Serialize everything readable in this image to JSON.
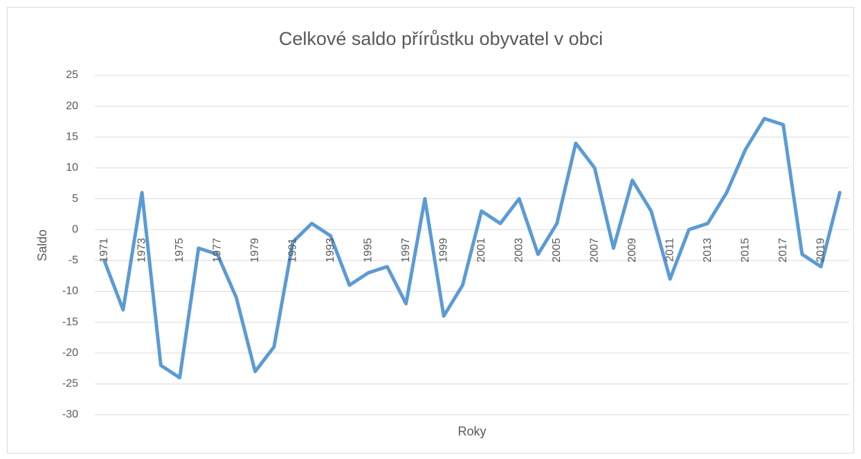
{
  "chart_data": {
    "type": "line",
    "title": "Celkové saldo přírůstku obyvatel v obci",
    "x_label": "Roky",
    "y_label": "Saldo",
    "categories": [
      "1971",
      null,
      "1973",
      null,
      "1975",
      null,
      "1977",
      null,
      "1979",
      null,
      "1991",
      null,
      "1993",
      null,
      "1995",
      null,
      "1997",
      null,
      "1999",
      null,
      "2001",
      null,
      "2003",
      null,
      "2005",
      null,
      "2007",
      null,
      "2009",
      null,
      "2011",
      null,
      "2013",
      null,
      "2015",
      null,
      "2017",
      null,
      "2019",
      null
    ],
    "series": [
      {
        "name": "Saldo",
        "color": "#5b9bd5",
        "values": [
          -5,
          -13,
          6,
          -22,
          -24,
          -3,
          -4,
          -11,
          -23,
          -19,
          -2,
          1,
          -1,
          -9,
          -7,
          -6,
          -12,
          5,
          -14,
          -9,
          3,
          1,
          5,
          -4,
          1,
          14,
          10,
          -3,
          8,
          3,
          -8,
          0,
          1,
          6,
          13,
          18,
          17,
          -4,
          -6,
          6
        ]
      }
    ],
    "ylim": [
      -30,
      25
    ],
    "yticks": [
      -30,
      -25,
      -20,
      -15,
      -10,
      -5,
      0,
      5,
      10,
      15,
      20,
      25
    ],
    "grid": true
  }
}
